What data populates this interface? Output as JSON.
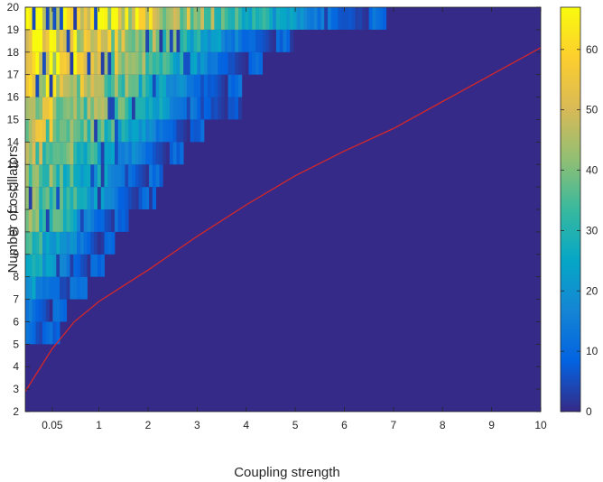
{
  "chart_data": {
    "type": "heatmap",
    "xlabel": "Coupling strength",
    "ylabel": "Number of oscillators",
    "x_ticks": [
      {
        "value": 0.05,
        "label": "0.05"
      },
      {
        "value": 1,
        "label": "1"
      },
      {
        "value": 2,
        "label": "2"
      },
      {
        "value": 3,
        "label": "3"
      },
      {
        "value": 4,
        "label": "4"
      },
      {
        "value": 5,
        "label": "5"
      },
      {
        "value": 6,
        "label": "6"
      },
      {
        "value": 7,
        "label": "7"
      },
      {
        "value": 8,
        "label": "8"
      },
      {
        "value": 9,
        "label": "9"
      },
      {
        "value": 10,
        "label": "10"
      }
    ],
    "y_ticks": [
      2,
      3,
      4,
      5,
      6,
      7,
      8,
      9,
      10,
      11,
      12,
      13,
      14,
      15,
      16,
      17,
      18,
      19,
      20
    ],
    "xlim": [
      -0.5,
      10
    ],
    "ylim": [
      2,
      20
    ],
    "colorbar": {
      "ticks": [
        0,
        10,
        20,
        30,
        40,
        50,
        60
      ],
      "range": [
        0,
        67
      ],
      "colormap": "parula"
    },
    "background_color": "#352a87",
    "boundary_curve": {
      "color": "#d62728",
      "x": [
        -0.5,
        0.05,
        0.5,
        1,
        1.5,
        2,
        3,
        4,
        5,
        6,
        7,
        8,
        9,
        10
      ],
      "y": [
        2.9,
        4.8,
        6.0,
        6.9,
        7.6,
        8.3,
        9.8,
        11.2,
        12.5,
        13.6,
        14.6,
        15.8,
        17.0,
        18.2
      ]
    },
    "rows": [
      {
        "y": 2.5,
        "extent": -0.5,
        "peak": 0
      },
      {
        "y": 3.5,
        "extent": -0.5,
        "peak": 0
      },
      {
        "y": 4.5,
        "extent": -0.5,
        "peak": 0
      },
      {
        "y": 5.5,
        "extent": -0.15,
        "peak": 12
      },
      {
        "y": 6.5,
        "extent": 0.0,
        "peak": 14
      },
      {
        "y": 7.5,
        "extent": 0.4,
        "peak": 22
      },
      {
        "y": 8.5,
        "extent": 0.8,
        "peak": 26
      },
      {
        "y": 9.5,
        "extent": 1.0,
        "peak": 32
      },
      {
        "y": 10.5,
        "extent": 1.3,
        "peak": 38
      },
      {
        "y": 11.5,
        "extent": 1.8,
        "peak": 40
      },
      {
        "y": 12.5,
        "extent": 2.0,
        "peak": 42
      },
      {
        "y": 13.5,
        "extent": 2.4,
        "peak": 44
      },
      {
        "y": 14.5,
        "extent": 2.8,
        "peak": 48
      },
      {
        "y": 15.5,
        "extent": 3.6,
        "peak": 50
      },
      {
        "y": 16.5,
        "extent": 3.6,
        "peak": 55
      },
      {
        "y": 17.5,
        "extent": 4.0,
        "peak": 60
      },
      {
        "y": 18.5,
        "extent": 4.6,
        "peak": 60
      },
      {
        "y": 19.5,
        "extent": 6.5,
        "peak": 64
      }
    ]
  }
}
